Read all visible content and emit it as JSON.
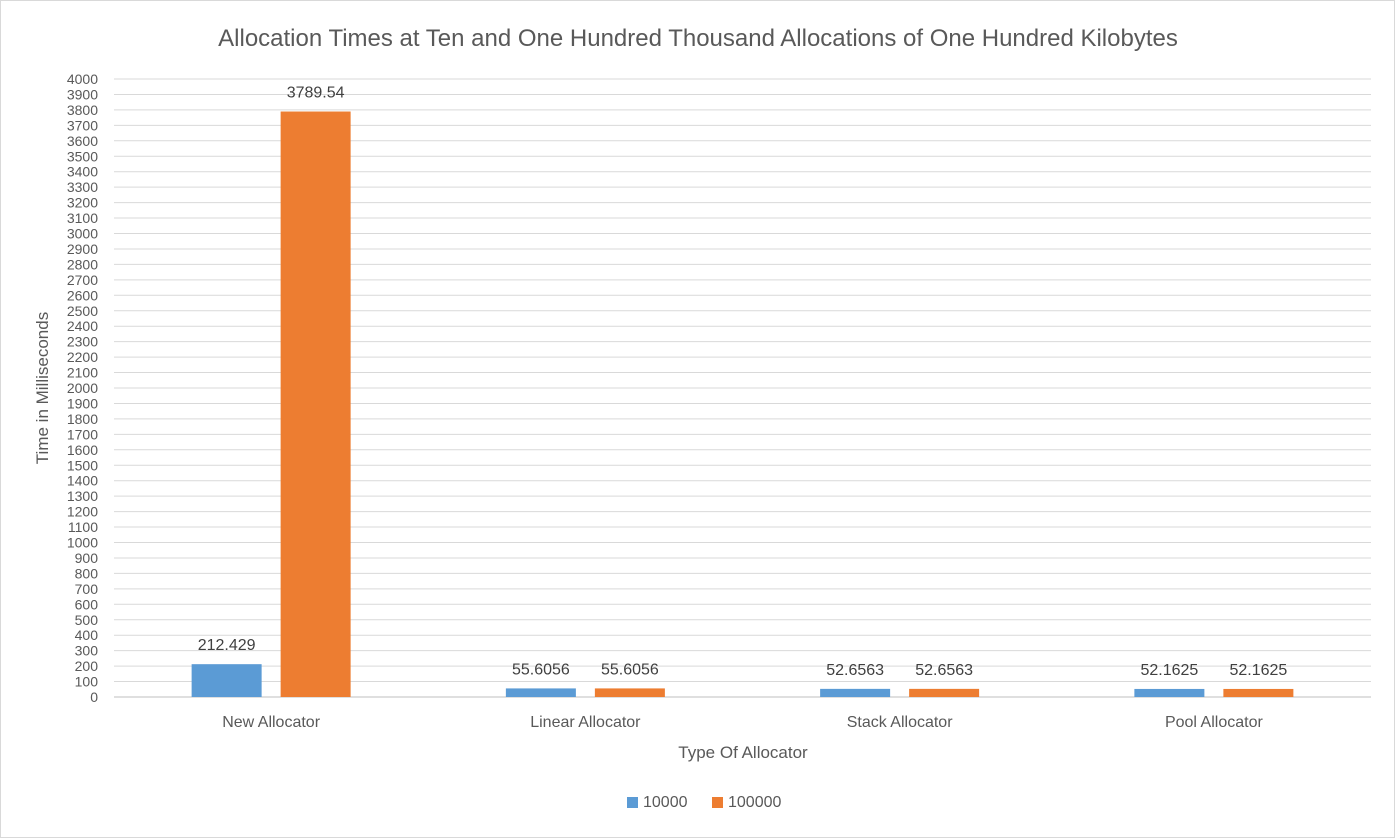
{
  "chart_data": {
    "type": "bar",
    "title": "Allocation Times at Ten and One Hundred Thousand Allocations of One Hundred Kilobytes",
    "xlabel": "Type Of Allocator",
    "ylabel": "Time in Milliseconds",
    "categories": [
      "New Allocator",
      "Linear Allocator",
      "Stack Allocator",
      "Pool Allocator"
    ],
    "series": [
      {
        "name": "10000",
        "color": "#5b9bd5",
        "values": [
          212.429,
          55.6056,
          52.6563,
          52.1625
        ],
        "labels": [
          "212.429",
          "55.6056",
          "52.6563",
          "52.1625"
        ]
      },
      {
        "name": "100000",
        "color": "#ed7d31",
        "values": [
          3789.54,
          55.6056,
          52.6563,
          52.1625
        ],
        "labels": [
          "3789.54",
          "55.6056",
          "52.6563",
          "52.1625"
        ]
      }
    ],
    "ylim": [
      0,
      4000
    ],
    "ytick_step": 100,
    "grid": true,
    "legend": "bottom"
  }
}
